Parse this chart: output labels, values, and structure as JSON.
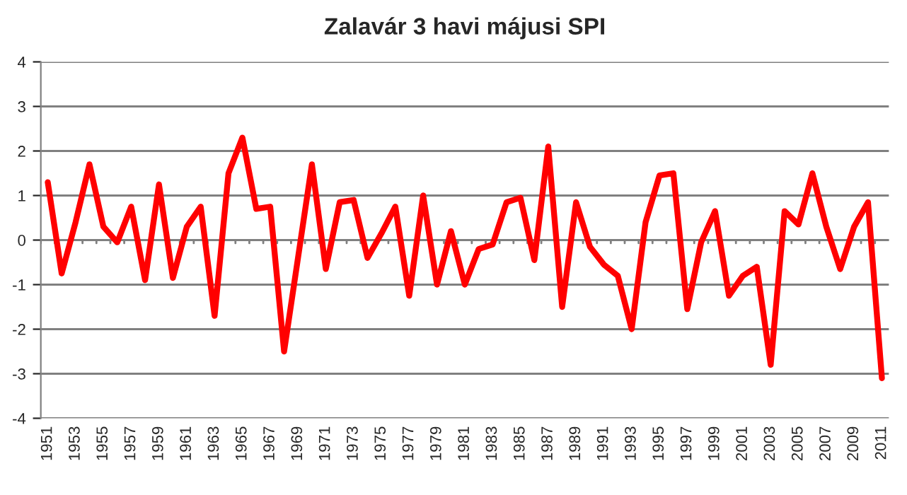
{
  "chart_data": {
    "type": "line",
    "title": "Zalavár 3 havi májusi SPI",
    "categories": [
      "1951",
      null,
      "1953",
      null,
      "1955",
      null,
      "1957",
      null,
      "1959",
      null,
      "1961",
      null,
      "1963",
      null,
      "1965",
      null,
      "1967",
      null,
      "1969",
      null,
      "1971",
      null,
      "1973",
      null,
      "1975",
      null,
      "1977",
      null,
      "1979",
      null,
      "1981",
      null,
      "1983",
      null,
      "1985",
      null,
      "1987",
      null,
      "1989",
      null,
      "1991",
      null,
      "1993",
      null,
      "1995",
      null,
      "1997",
      null,
      "1999",
      null,
      "2001",
      null,
      "2003",
      null,
      "2005",
      null,
      "2007",
      null,
      "2009",
      null,
      "2011"
    ],
    "series": [
      {
        "color": "#ff0000",
        "values": [
          1.3,
          -0.75,
          0.4,
          1.7,
          0.3,
          -0.05,
          0.75,
          -0.9,
          1.25,
          -0.85,
          0.3,
          0.75,
          -1.7,
          1.5,
          2.3,
          0.7,
          0.75,
          -2.5,
          -0.4,
          1.7,
          -0.65,
          0.85,
          0.9,
          -0.4,
          0.15,
          0.75,
          -1.25,
          1.0,
          -1.0,
          0.2,
          -1.0,
          -0.2,
          -0.1,
          0.85,
          0.95,
          -0.45,
          2.1,
          -1.5,
          0.85,
          -0.15,
          -0.55,
          -0.8,
          -2.0,
          0.4,
          1.45,
          1.5,
          -1.55,
          -0.05,
          0.65,
          -1.25,
          -0.8,
          -0.6,
          -2.8,
          0.65,
          0.35,
          1.5,
          0.3,
          -0.65,
          0.3,
          0.85,
          -3.1
        ]
      }
    ],
    "ylim": [
      -4,
      4
    ],
    "yticks": [
      -4,
      -3,
      -2,
      -1,
      0,
      1,
      2,
      3,
      4
    ],
    "grid": "y",
    "marker": "none",
    "line_style": "solid",
    "legend": false
  }
}
